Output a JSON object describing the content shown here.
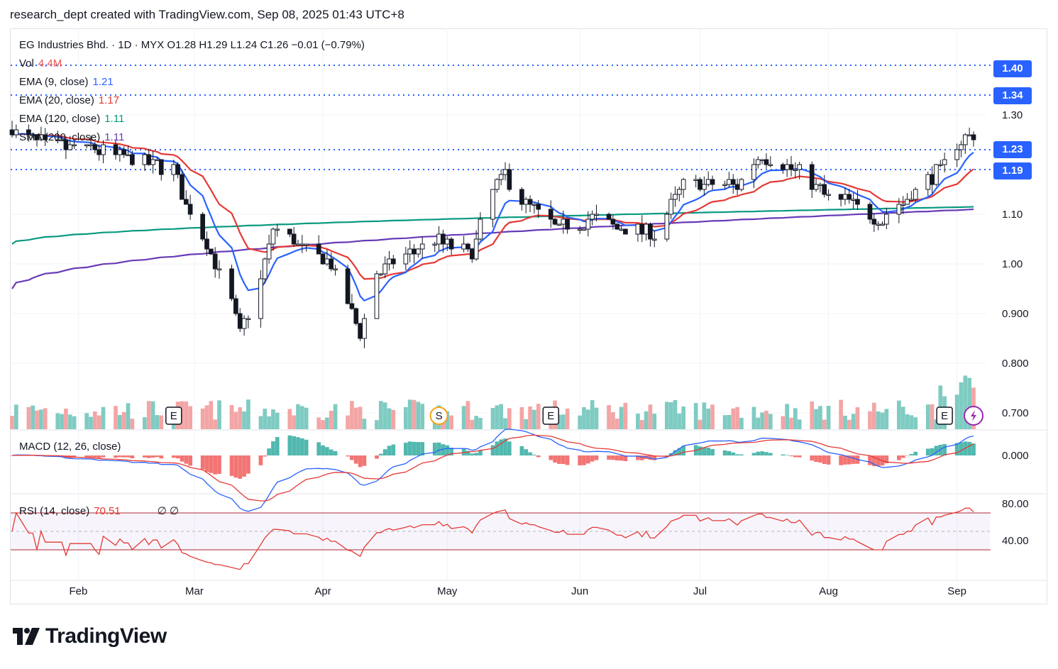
{
  "header": {
    "text": "research_dept created with TradingView.com, Sep 08, 2025 01:43 UTC+8"
  },
  "legend": {
    "symbol_line": "EG Industries Bhd. · 1D · MYX  O1.28  H1.29  L1.24  C1.26  −0.01 (−0.79%)",
    "vol_label": "Vol",
    "vol_value": "4.4M",
    "ema9_label": "EMA (9, close)",
    "ema9_value": "1.21",
    "ema20_label": "EMA (20, close)",
    "ema20_value": "1.17",
    "ema120_label": "EMA (120, close)",
    "ema120_value": "1.11",
    "sma200_label": "SMA (200, close)",
    "sma200_value": "1.11",
    "macd_label": "MACD (12, 26, close)",
    "rsi_label": "RSI (14, close)",
    "rsi_value": "70.51",
    "rsi_extra": "∅  ∅"
  },
  "price_tags": [
    {
      "label": "1.40",
      "value": 1.4
    },
    {
      "label": "1.34",
      "value": 1.34
    },
    {
      "label": "1.23",
      "value": 1.23
    },
    {
      "label": "1.19",
      "value": 1.19
    }
  ],
  "markers": [
    {
      "type": "E",
      "date": "2025-02-24"
    },
    {
      "type": "S",
      "date": "2025-04-29"
    },
    {
      "type": "E",
      "date": "2025-05-26"
    },
    {
      "type": "E",
      "date": "2025-08-29"
    },
    {
      "type": "flash",
      "date": "2025-09-05"
    }
  ],
  "brand": {
    "name": "TradingView"
  },
  "colors": {
    "up": "#ffffff",
    "down": "#131722",
    "vol_up": "#7fcbc2",
    "vol_down": "#f3a5a5",
    "ema9": "#2962ff",
    "ema20": "#e53935",
    "ema120": "#089981",
    "sma200": "#673ab7",
    "level": "#2962ff",
    "macd": "#2962ff",
    "signal": "#e53935",
    "rsi": "#e53935"
  },
  "chart_data": {
    "type": "candlestick",
    "x_axis": {
      "ticks": [
        "Feb",
        "Mar",
        "Apr",
        "May",
        "Jun",
        "Jul",
        "Aug",
        "Sep"
      ],
      "start": "2025-01-16",
      "end": "2025-09-05"
    },
    "y_axis": {
      "ticks": [
        "1.30",
        "1.10",
        "1.00",
        "0.900",
        "0.800",
        "0.700"
      ],
      "range": [
        0.66,
        1.4
      ]
    },
    "macd_axis": {
      "ticks": [
        "0.000"
      ]
    },
    "rsi_axis": {
      "ticks": [
        "80.00",
        "40.00"
      ],
      "range": [
        20,
        85
      ],
      "bands": [
        70,
        30
      ]
    },
    "levels": [
      1.4,
      1.34,
      1.23,
      1.19
    ],
    "series": [
      {
        "name": "EG Industries Bhd.",
        "type": "candle",
        "ohlc_waypoints": [
          {
            "date": "2025-01-16",
            "close": 1.27
          },
          {
            "date": "2025-01-24",
            "close": 1.24
          },
          {
            "date": "2025-02-05",
            "close": 1.23
          },
          {
            "date": "2025-02-14",
            "close": 1.21
          },
          {
            "date": "2025-02-24",
            "close": 1.19
          },
          {
            "date": "2025-02-27",
            "close": 1.12
          },
          {
            "date": "2025-03-03",
            "close": 1.06
          },
          {
            "date": "2025-03-10",
            "close": 0.92
          },
          {
            "date": "2025-03-12",
            "close": 0.86
          },
          {
            "date": "2025-03-17",
            "close": 0.97
          },
          {
            "date": "2025-03-20",
            "close": 1.07
          },
          {
            "date": "2025-03-26",
            "close": 1.04
          },
          {
            "date": "2025-04-03",
            "close": 1.0
          },
          {
            "date": "2025-04-10",
            "close": 0.86
          },
          {
            "date": "2025-04-14",
            "close": 0.98
          },
          {
            "date": "2025-04-22",
            "close": 1.02
          },
          {
            "date": "2025-04-28",
            "close": 1.05
          },
          {
            "date": "2025-05-07",
            "close": 1.02
          },
          {
            "date": "2025-05-12",
            "close": 1.15
          },
          {
            "date": "2025-05-15",
            "close": 1.18
          },
          {
            "date": "2025-05-20",
            "close": 1.12
          },
          {
            "date": "2025-05-28",
            "close": 1.07
          },
          {
            "date": "2025-06-05",
            "close": 1.09
          },
          {
            "date": "2025-06-12",
            "close": 1.07
          },
          {
            "date": "2025-06-20",
            "close": 1.06
          },
          {
            "date": "2025-06-27",
            "close": 1.16
          },
          {
            "date": "2025-07-10",
            "close": 1.16
          },
          {
            "date": "2025-07-16",
            "close": 1.22
          },
          {
            "date": "2025-07-24",
            "close": 1.19
          },
          {
            "date": "2025-07-31",
            "close": 1.14
          },
          {
            "date": "2025-08-07",
            "close": 1.12
          },
          {
            "date": "2025-08-14",
            "close": 1.09
          },
          {
            "date": "2025-08-21",
            "close": 1.14
          },
          {
            "date": "2025-08-28",
            "close": 1.19
          },
          {
            "date": "2025-09-02",
            "close": 1.25
          },
          {
            "date": "2025-09-05",
            "close": 1.26
          }
        ]
      },
      {
        "name": "EMA (9, close)",
        "last": 1.21
      },
      {
        "name": "EMA (20, close)",
        "last": 1.17
      },
      {
        "name": "EMA (120, close)",
        "last": 1.11
      },
      {
        "name": "SMA (200, close)",
        "last": 1.11
      }
    ]
  }
}
